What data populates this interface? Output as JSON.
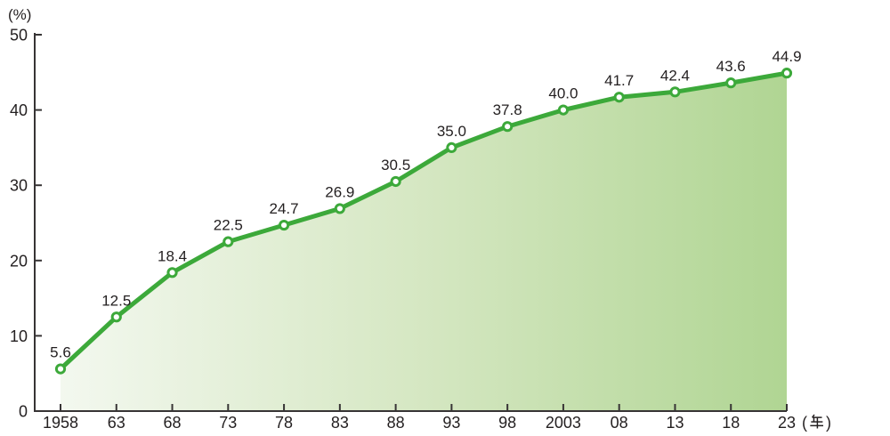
{
  "chart_data": {
    "type": "area",
    "categories": [
      "1958",
      "63",
      "68",
      "73",
      "78",
      "83",
      "88",
      "93",
      "98",
      "2003",
      "08",
      "13",
      "18",
      "23"
    ],
    "values": [
      5.6,
      12.5,
      18.4,
      22.5,
      24.7,
      26.9,
      30.5,
      35.0,
      37.8,
      40.0,
      41.7,
      42.4,
      43.6,
      44.9
    ],
    "point_labels": [
      "5.6",
      "12.5",
      "18.4",
      "22.5",
      "24.7",
      "26.9",
      "30.5",
      "35.0",
      "37.8",
      "40.0",
      "41.7",
      "42.4",
      "43.6",
      "44.9"
    ],
    "y_ticks": [
      0,
      10,
      20,
      30,
      40,
      50
    ],
    "ylim": [
      0,
      50
    ],
    "y_unit_label": "(%)",
    "x_unit_label_open_paren": "(",
    "x_unit_label_kanji": "年",
    "x_unit_label_close_paren": ")",
    "title": "",
    "grid": false,
    "legend": false,
    "colors": {
      "line": "#3ca93a",
      "marker_fill": "#ffffff",
      "marker_stroke": "#3ca93a",
      "area_gradient_start": "#f3f8ef",
      "area_gradient_mid": "#d5e7c2",
      "area_gradient_end": "#b0d593",
      "axis": "#373435",
      "text": "#231f20"
    }
  }
}
